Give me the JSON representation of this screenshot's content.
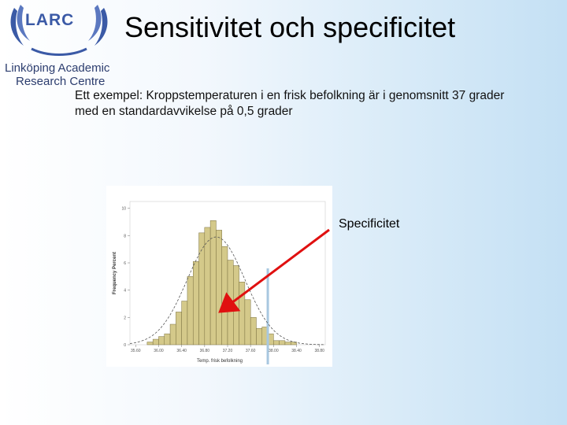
{
  "logo": {
    "mark": "LARC",
    "line1": "Linköping Academic",
    "line2": "Research Centre"
  },
  "slide": {
    "title": "Sensitivitet och specificitet",
    "intro": "Ett exempel: Kroppstemperaturen i en frisk befolkning är i genomsnitt 37 grader med en standardavvikelse på 0,5 grader",
    "annotation": "Specificitet"
  },
  "colors": {
    "bar_fill": "#d4c98a",
    "bar_stroke": "#7a7040",
    "curve": "#555555",
    "threshold": "#a8c8e0",
    "arrow": "#e01010",
    "logo_blue": "#3b5aa6"
  },
  "chart_data": {
    "type": "bar",
    "xlabel": "Temp. frisk befolkning",
    "ylabel": "Frequency Percent",
    "x_ticks": [
      "35.60",
      "36.00",
      "36.40",
      "36.80",
      "37.20",
      "37.60",
      "38.00",
      "38.40",
      "38.80"
    ],
    "y_ticks": [
      "0",
      "2",
      "4",
      "6",
      "8",
      "10"
    ],
    "xlim": [
      35.5,
      38.9
    ],
    "ylim": [
      0,
      10.5
    ],
    "bin_width": 0.1,
    "bins_start": [
      35.8,
      35.9,
      36.0,
      36.1,
      36.2,
      36.3,
      36.4,
      36.5,
      36.6,
      36.7,
      36.8,
      36.9,
      37.0,
      37.1,
      37.2,
      37.3,
      37.4,
      37.5,
      37.6,
      37.7,
      37.8,
      37.9,
      38.0,
      38.1,
      38.2,
      38.3
    ],
    "values": [
      0.2,
      0.4,
      0.6,
      0.8,
      1.5,
      2.4,
      3.2,
      5.0,
      6.1,
      8.2,
      8.6,
      9.1,
      8.4,
      7.2,
      6.2,
      5.8,
      4.6,
      3.3,
      2.0,
      1.2,
      1.3,
      0.8,
      0.3,
      0.3,
      0.2,
      0.2
    ],
    "normal_curve": {
      "mean": 37.0,
      "sd": 0.5,
      "peak": 7.9
    },
    "threshold": 37.9
  }
}
